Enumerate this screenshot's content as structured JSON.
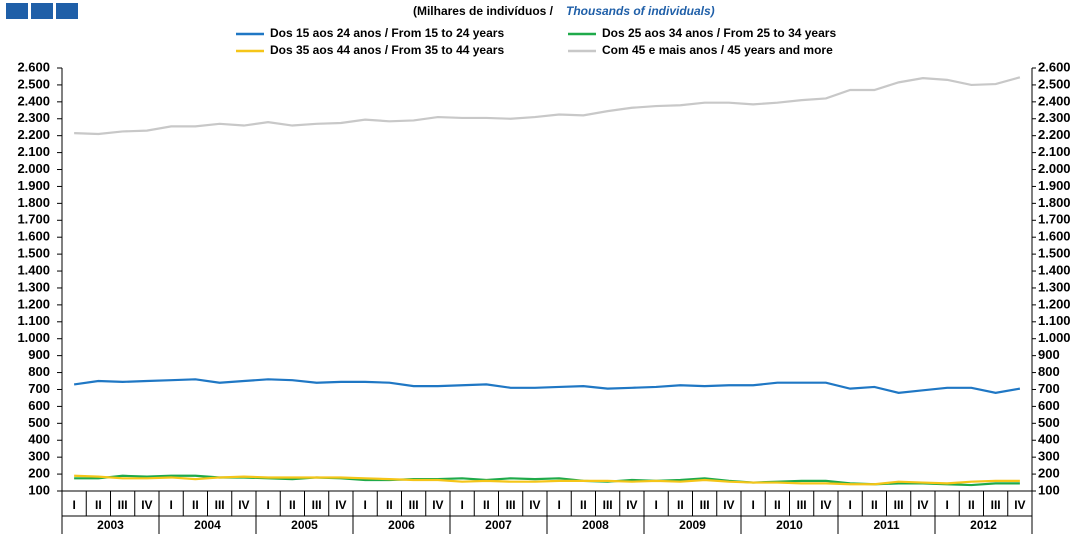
{
  "chart_data": {
    "type": "line",
    "subtitle": "(Milhares de indivíduos  /",
    "subtitle_en": "Thousands of individuals)",
    "categories": [
      "I",
      "II",
      "III",
      "IV",
      "I",
      "II",
      "III",
      "IV",
      "I",
      "II",
      "III",
      "IV",
      "I",
      "II",
      "III",
      "IV",
      "I",
      "II",
      "III",
      "IV",
      "I",
      "II",
      "III",
      "IV",
      "I",
      "II",
      "III",
      "IV",
      "I",
      "II",
      "III",
      "IV",
      "I",
      "II",
      "III",
      "IV",
      "I",
      "II",
      "III",
      "IV"
    ],
    "years": [
      "2003",
      "2004",
      "2005",
      "2006",
      "2007",
      "2008",
      "2009",
      "2010",
      "2011",
      "2012"
    ],
    "series": [
      {
        "name": "Dos 15 aos 24 anos / From 15 to 24 years",
        "color": "#1f77c4",
        "values": [
          730,
          750,
          745,
          750,
          755,
          760,
          740,
          750,
          760,
          755,
          740,
          745,
          745,
          740,
          720,
          720,
          725,
          730,
          710,
          710,
          715,
          720,
          705,
          710,
          715,
          725,
          720,
          725,
          725,
          740,
          740,
          740,
          705,
          715,
          680,
          695,
          710,
          710,
          680,
          705
        ]
      },
      {
        "name": "Dos 25 aos 34 anos / From 25 to 34 years",
        "color": "#1faa4a",
        "values": [
          175,
          175,
          190,
          185,
          190,
          190,
          180,
          180,
          175,
          170,
          180,
          175,
          165,
          165,
          170,
          170,
          175,
          165,
          175,
          170,
          175,
          160,
          155,
          165,
          160,
          165,
          175,
          160,
          150,
          155,
          160,
          160,
          145,
          140,
          145,
          145,
          140,
          135,
          145,
          145
        ]
      },
      {
        "name": "Dos 35 aos 44 anos / From 35 to 44 years",
        "color": "#f5c518",
        "values": [
          190,
          185,
          175,
          175,
          180,
          170,
          180,
          185,
          180,
          180,
          180,
          180,
          175,
          170,
          165,
          165,
          155,
          160,
          155,
          155,
          160,
          160,
          160,
          155,
          160,
          155,
          165,
          155,
          150,
          150,
          145,
          145,
          140,
          140,
          155,
          150,
          145,
          155,
          160,
          160
        ]
      },
      {
        "name": "Com 45 e mais anos / 45 years and more",
        "color": "#c8c8c8",
        "values": [
          2215,
          2210,
          2225,
          2230,
          2255,
          2255,
          2270,
          2260,
          2280,
          2260,
          2270,
          2275,
          2295,
          2285,
          2290,
          2310,
          2305,
          2305,
          2300,
          2310,
          2325,
          2320,
          2345,
          2365,
          2375,
          2380,
          2395,
          2395,
          2385,
          2395,
          2410,
          2420,
          2470,
          2470,
          2515,
          2540,
          2530,
          2500,
          2505,
          2545
        ]
      }
    ],
    "ylim": [
      100,
      2600
    ],
    "yticks": [
      100,
      200,
      300,
      400,
      500,
      600,
      700,
      800,
      900,
      {
        "value": 1000,
        "label": "1.000"
      },
      {
        "value": 1100,
        "label": "1.100"
      },
      {
        "value": 1200,
        "label": "1.200"
      },
      {
        "value": 1300,
        "label": "1.300"
      },
      {
        "value": 1400,
        "label": "1.400"
      },
      {
        "value": 1500,
        "label": "1.500"
      },
      {
        "value": 1600,
        "label": "1.600"
      },
      {
        "value": 1700,
        "label": "1.700"
      },
      {
        "value": 1800,
        "label": "1.800"
      },
      {
        "value": 1900,
        "label": "1.900"
      },
      {
        "value": 2000,
        "label": "2.000"
      },
      {
        "value": 2100,
        "label": "2.100"
      },
      {
        "value": 2200,
        "label": "2.200"
      },
      {
        "value": 2300,
        "label": "2.300"
      },
      {
        "value": 2400,
        "label": "2.400"
      },
      {
        "value": 2500,
        "label": "2.500"
      },
      {
        "value": 2600,
        "label": "2.600"
      }
    ]
  }
}
